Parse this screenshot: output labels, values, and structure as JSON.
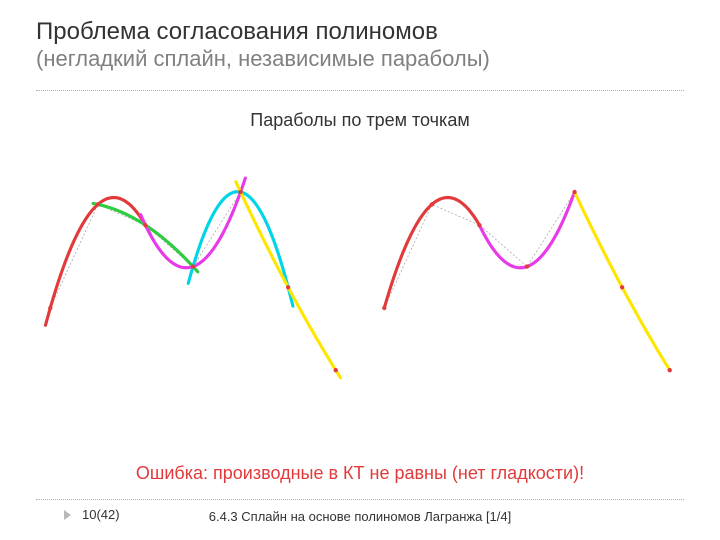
{
  "title": {
    "line1": "Проблема согласования полиномов",
    "line2": "(негладкий сплайн, независимые параболы)",
    "line1_color": "#333333",
    "line2_color": "#808080",
    "fontsize_line1": 24,
    "fontsize_line2": 22
  },
  "subtitle": {
    "text": "Параболы по трем точкам",
    "fontsize": 18,
    "color": "#333333"
  },
  "error_text": {
    "text": "Ошибка: производные в КТ не равны (нет гладкости)!",
    "fontsize": 18,
    "color": "#e23a3a"
  },
  "footer": {
    "page": "10(42)",
    "center": "6.4.3 Сплайн на основе полиномов Лагранжа [1/4]",
    "triangle_color": "#b8b8b8",
    "fontsize": 13
  },
  "divider": {
    "style": "dotted",
    "color": "#b0b0b0"
  },
  "background_color": "#ffffff",
  "line_style": {
    "series_stroke_width": 3.2,
    "guide_stroke_width": 0.8,
    "guide_dash": "2 2",
    "point_radius": 2.2
  },
  "colors": {
    "red": "#e23a3a",
    "green": "#2ecc40",
    "magenta": "#e83ae8",
    "cyan": "#00d5e8",
    "yellow": "#ffe600",
    "guide": "#a8a8a8",
    "point": "#e23a3a"
  },
  "control_points": {
    "x": [
      0.0,
      1.0,
      2.0,
      3.0,
      4.0,
      5.0,
      6.0
    ],
    "y": [
      2.0,
      4.5,
      4.0,
      3.0,
      4.8,
      2.5,
      0.5
    ]
  },
  "parabolas": [
    {
      "pts": [
        0,
        1,
        2
      ],
      "color": "red"
    },
    {
      "pts": [
        1,
        2,
        3
      ],
      "color": "green"
    },
    {
      "pts": [
        2,
        3,
        4
      ],
      "color": "magenta"
    },
    {
      "pts": [
        3,
        4,
        5
      ],
      "color": "cyan"
    },
    {
      "pts": [
        4,
        5,
        6
      ],
      "color": "yellow"
    }
  ],
  "left_chart": {
    "description": "all five full parabolas overlaid",
    "show_curves": [
      "red",
      "green",
      "magenta",
      "cyan",
      "yellow"
    ],
    "clip_to_segment": false
  },
  "right_chart": {
    "description": "each parabola clipped to its 2-unit span — piecewise result",
    "show_curves": [
      "red",
      "magenta",
      "yellow"
    ],
    "clip_to_segment": true
  },
  "axes": {
    "xlim": [
      -0.3,
      6.3
    ],
    "ylim": [
      -0.8,
      6.2
    ],
    "aspect": "auto",
    "grid": false,
    "show_axes": false
  }
}
